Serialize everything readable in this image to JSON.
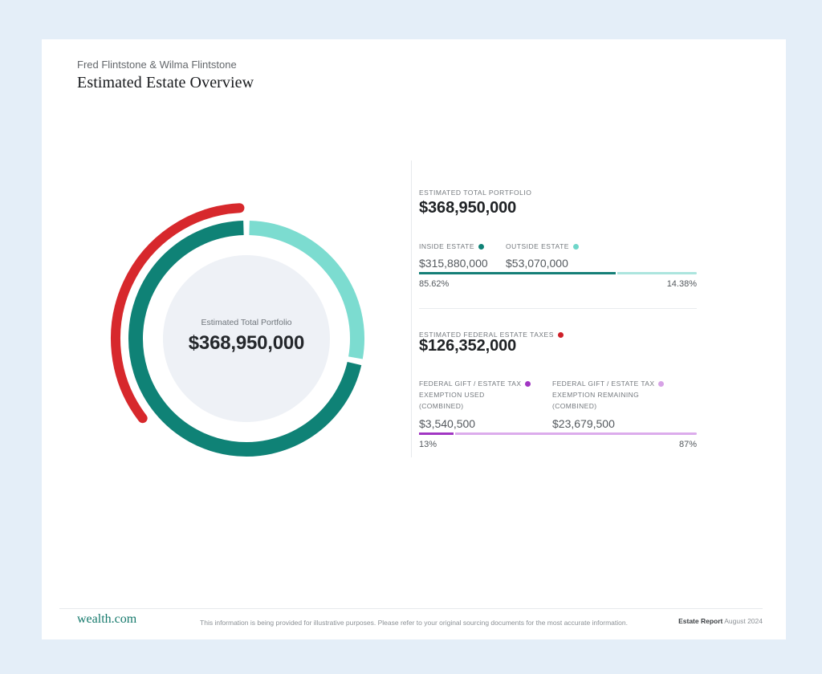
{
  "header": {
    "names": "Fred Flintstone & Wilma Flintstone",
    "title": "Estimated Estate Overview"
  },
  "chart_data": {
    "type": "pie",
    "title": "Estimated Total Portfolio",
    "center_label": "Estimated Total Portfolio",
    "center_value": "$368,950,000",
    "inner_circle_color": "#EEF1F6",
    "inner_circle_radius": 104,
    "legend_position": "right-panel",
    "segments": [
      {
        "name": "Outside Estate",
        "value": 53070000,
        "pct_label": "14.38%",
        "color": "#7CDCD0",
        "start_deg": 1.5,
        "end_deg": 100,
        "radius": 138,
        "width": 18,
        "cap": "butt"
      },
      {
        "name": "Inside Estate",
        "value": 315880000,
        "pct_label": "85.62%",
        "color": "#0F8276",
        "start_deg": 103,
        "end_deg": 358.5,
        "radius": 138,
        "width": 18,
        "cap": "butt"
      },
      {
        "name": "Estimated Federal Estate Taxes",
        "value": 126352000,
        "color": "#D7282C",
        "start_deg": 232.5,
        "end_deg": 357,
        "radius": 163,
        "width": 12,
        "cap": "round"
      }
    ]
  },
  "portfolio": {
    "label": "ESTIMATED TOTAL PORTFOLIO",
    "value": "$368,950,000",
    "inside": {
      "label": "INSIDE ESTATE",
      "value": "$315,880,000",
      "dot_color": "#0F8276",
      "pct": "85.62%"
    },
    "outside": {
      "label": "OUTSIDE ESTATE",
      "value": "$53,070,000",
      "dot_color": "#6FD6C9",
      "pct": "14.38%"
    },
    "bar": {
      "left_color": "#157F77",
      "right_color": "#ACE5DE",
      "left_fill_percent": 71.5
    }
  },
  "taxes": {
    "label": "ESTIMATED FEDERAL ESTATE TAXES",
    "dot_color": "#CE2029",
    "value": "$126,352,000",
    "used": {
      "label_lines": [
        "FEDERAL GIFT / ESTATE TAX",
        "EXEMPTION USED",
        "(COMBINED)"
      ],
      "value": "$3,540,500",
      "dot_color": "#A136C3",
      "pct": "13%"
    },
    "remaining": {
      "label_lines": [
        "FEDERAL GIFT / ESTATE TAX",
        "EXEMPTION REMAINING",
        "(COMBINED)"
      ],
      "value": "$23,679,500",
      "dot_color": "#D7A3E6",
      "pct": "87%"
    },
    "bar": {
      "left_color": "#A136C3",
      "right_color": "#DCACEC",
      "left_fill_percent": 13
    }
  },
  "footer": {
    "logo": "wealth.com",
    "disclaimer": "This information is being provided for illustrative purposes. Please refer to your original sourcing documents for the most accurate information.",
    "report_name": "Estate Report",
    "report_date": " August 2024"
  }
}
